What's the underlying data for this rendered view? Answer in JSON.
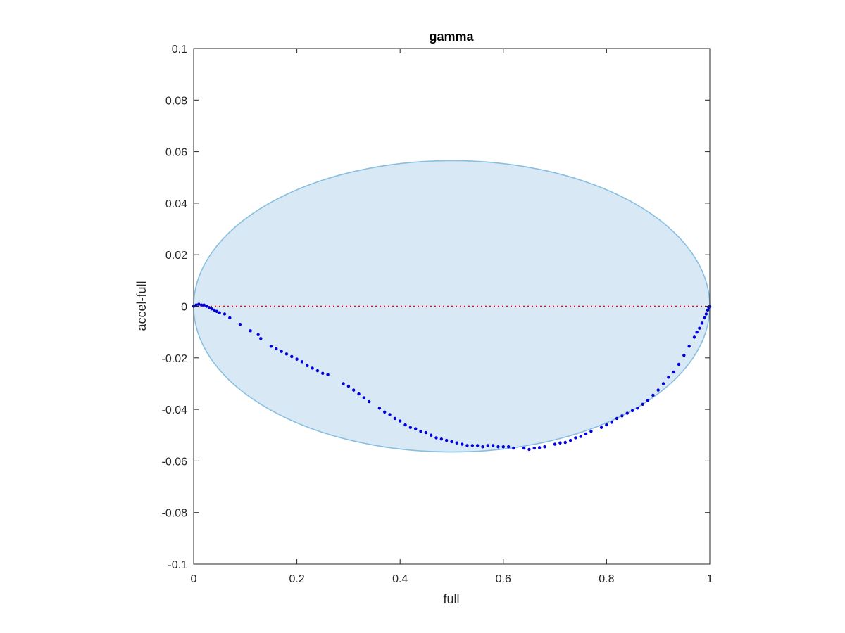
{
  "chart_data": {
    "type": "scatter",
    "title": "gamma",
    "xlabel": "full",
    "ylabel": "accel-full",
    "xlim": [
      0,
      1
    ],
    "ylim": [
      -0.1,
      0.1
    ],
    "xticks": [
      0,
      0.2,
      0.4,
      0.6,
      0.8,
      1
    ],
    "xtick_labels": [
      "0",
      "0.2",
      "0.4",
      "0.6",
      "0.8",
      "1"
    ],
    "yticks": [
      -0.1,
      -0.08,
      -0.06,
      -0.04,
      -0.02,
      0,
      0.02,
      0.04,
      0.06,
      0.08,
      0.1
    ],
    "ytick_labels": [
      "-0.1",
      "-0.08",
      "-0.06",
      "-0.04",
      "-0.02",
      "0",
      "0.02",
      "0.04",
      "0.06",
      "0.08",
      "0.1"
    ],
    "grid": false,
    "reference_line": {
      "y": 0,
      "style": "dotted",
      "color": "#ff0000"
    },
    "ellipse": {
      "center": [
        0.5,
        0
      ],
      "x_radius": 0.5,
      "y_radius": 0.0565,
      "fill": "#d8e8f5",
      "edge": "#88bfe0"
    },
    "series": [
      {
        "color": "#0000dd",
        "x": [
          0.0,
          0.005,
          0.01,
          0.015,
          0.02,
          0.025,
          0.03,
          0.035,
          0.04,
          0.045,
          0.05,
          0.06,
          0.07,
          0.09,
          0.11,
          0.125,
          0.13,
          0.15,
          0.16,
          0.17,
          0.18,
          0.19,
          0.2,
          0.21,
          0.22,
          0.23,
          0.24,
          0.25,
          0.26,
          0.29,
          0.3,
          0.31,
          0.32,
          0.33,
          0.34,
          0.36,
          0.37,
          0.38,
          0.39,
          0.4,
          0.41,
          0.42,
          0.43,
          0.44,
          0.45,
          0.46,
          0.47,
          0.48,
          0.49,
          0.5,
          0.51,
          0.52,
          0.53,
          0.54,
          0.55,
          0.56,
          0.57,
          0.58,
          0.59,
          0.6,
          0.61,
          0.62,
          0.64,
          0.65,
          0.66,
          0.67,
          0.68,
          0.7,
          0.71,
          0.72,
          0.73,
          0.74,
          0.75,
          0.76,
          0.77,
          0.79,
          0.8,
          0.81,
          0.82,
          0.83,
          0.84,
          0.85,
          0.86,
          0.87,
          0.88,
          0.89,
          0.9,
          0.91,
          0.92,
          0.93,
          0.94,
          0.95,
          0.96,
          0.97,
          0.975,
          0.98,
          0.985,
          0.99,
          0.993,
          0.996,
          0.998,
          1.0
        ],
        "y": [
          0.0,
          0.0005,
          0.0008,
          0.0005,
          0.0005,
          0.0,
          -0.0005,
          -0.001,
          -0.0015,
          -0.002,
          -0.0025,
          -0.003,
          -0.0045,
          -0.007,
          -0.0095,
          -0.011,
          -0.0125,
          -0.0155,
          -0.0165,
          -0.0175,
          -0.0185,
          -0.0195,
          -0.0205,
          -0.0215,
          -0.023,
          -0.024,
          -0.025,
          -0.026,
          -0.0265,
          -0.03,
          -0.031,
          -0.0325,
          -0.034,
          -0.0355,
          -0.037,
          -0.0395,
          -0.041,
          -0.042,
          -0.0435,
          -0.0445,
          -0.046,
          -0.047,
          -0.0475,
          -0.0485,
          -0.049,
          -0.05,
          -0.051,
          -0.0515,
          -0.052,
          -0.0525,
          -0.053,
          -0.0535,
          -0.054,
          -0.054,
          -0.054,
          -0.0545,
          -0.054,
          -0.054,
          -0.0545,
          -0.0545,
          -0.0545,
          -0.055,
          -0.055,
          -0.0555,
          -0.055,
          -0.0548,
          -0.0545,
          -0.0535,
          -0.053,
          -0.0528,
          -0.052,
          -0.051,
          -0.0505,
          -0.0495,
          -0.0485,
          -0.047,
          -0.046,
          -0.045,
          -0.0435,
          -0.0425,
          -0.0415,
          -0.0405,
          -0.0395,
          -0.038,
          -0.0365,
          -0.0345,
          -0.0325,
          -0.03,
          -0.0275,
          -0.0255,
          -0.0225,
          -0.019,
          -0.0155,
          -0.012,
          -0.01,
          -0.0085,
          -0.0065,
          -0.0045,
          -0.003,
          -0.0015,
          -0.0005,
          0.0
        ]
      }
    ]
  }
}
